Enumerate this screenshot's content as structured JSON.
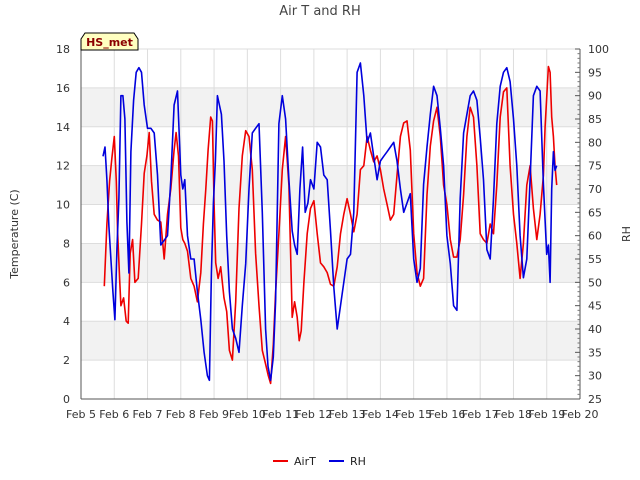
{
  "chart_data": {
    "type": "line",
    "title": "Air T and RH",
    "xlabel": "",
    "ylabel": "Temperature (C)",
    "y2label": "RH",
    "badge": "HS_met",
    "x_ticks": [
      "Feb 5",
      "Feb 6",
      "Feb 7",
      "Feb 8",
      "Feb 9",
      "Feb 10",
      "Feb 11",
      "Feb 12",
      "Feb 13",
      "Feb 14",
      "Feb 15",
      "Feb 16",
      "Feb 17",
      "Feb 18",
      "Feb 19",
      "Feb 20"
    ],
    "xlim": [
      5,
      20
    ],
    "ylim": [
      0,
      18
    ],
    "y_ticks": [
      0,
      2,
      4,
      6,
      8,
      10,
      12,
      14,
      16,
      18
    ],
    "y2lim": [
      25,
      100
    ],
    "y2_ticks": [
      25,
      30,
      35,
      40,
      45,
      50,
      55,
      60,
      65,
      70,
      75,
      80,
      85,
      90,
      95,
      100
    ],
    "legend": [
      "AirT",
      "RH"
    ],
    "colors": {
      "AirT": "#ee0000",
      "RH": "#0000dd",
      "band": "#f2f2f2",
      "grid": "#dddddd",
      "badge_bg": "#ffffc0"
    },
    "series": [
      {
        "name": "AirT",
        "axis": "left",
        "x": [
          5.7,
          5.78,
          5.86,
          5.93,
          6.0,
          6.06,
          6.1,
          6.16,
          6.2,
          6.28,
          6.36,
          6.42,
          6.48,
          6.55,
          6.62,
          6.72,
          6.82,
          6.9,
          6.98,
          7.05,
          7.12,
          7.2,
          7.3,
          7.4,
          7.5,
          7.6,
          7.7,
          7.8,
          7.86,
          7.93,
          8.0,
          8.06,
          8.12,
          8.2,
          8.3,
          8.4,
          8.5,
          8.6,
          8.68,
          8.75,
          8.82,
          8.9,
          8.95,
          9.0,
          9.05,
          9.12,
          9.2,
          9.3,
          9.38,
          9.46,
          9.55,
          9.65,
          9.75,
          9.85,
          9.95,
          10.05,
          10.15,
          10.25,
          10.35,
          10.45,
          10.55,
          10.63,
          10.7,
          10.78,
          10.85,
          10.95,
          11.05,
          11.15,
          11.25,
          11.35,
          11.42,
          11.5,
          11.56,
          11.62,
          11.7,
          11.8,
          11.9,
          12.0,
          12.1,
          12.2,
          12.3,
          12.4,
          12.5,
          12.6,
          12.7,
          12.8,
          12.9,
          13.0,
          13.1,
          13.2,
          13.3,
          13.4,
          13.5,
          13.6,
          13.7,
          13.8,
          13.9,
          14.0,
          14.1,
          14.2,
          14.3,
          14.4,
          14.5,
          14.6,
          14.7,
          14.8,
          14.9,
          15.0,
          15.1,
          15.2,
          15.3,
          15.4,
          15.5,
          15.6,
          15.7,
          15.8,
          15.9,
          16.0,
          16.1,
          16.2,
          16.3,
          16.4,
          16.5,
          16.6,
          16.7,
          16.8,
          16.9,
          17.0,
          17.1,
          17.2,
          17.3,
          17.4,
          17.5,
          17.6,
          17.7,
          17.8,
          17.9,
          18.0,
          18.1,
          18.2,
          18.3,
          18.4,
          18.5,
          18.6,
          18.7,
          18.8,
          18.9,
          18.95,
          19.0,
          19.05,
          19.1,
          19.15,
          19.2,
          19.25,
          19.3
        ],
        "y": [
          5.8,
          9.0,
          11.2,
          12.4,
          13.5,
          11.2,
          8.6,
          6.2,
          4.8,
          5.2,
          4.0,
          3.9,
          7.5,
          8.2,
          6.0,
          6.2,
          9.0,
          11.6,
          12.5,
          13.7,
          11.2,
          9.5,
          9.2,
          9.1,
          7.2,
          9.5,
          10.8,
          12.8,
          13.7,
          12.5,
          8.8,
          8.2,
          8.0,
          7.6,
          6.2,
          5.8,
          5.0,
          6.5,
          9.0,
          10.8,
          12.8,
          14.5,
          14.3,
          10.0,
          7.0,
          6.2,
          6.8,
          5.2,
          4.5,
          2.5,
          2.0,
          5.0,
          9.8,
          12.5,
          13.8,
          13.5,
          11.8,
          7.5,
          4.8,
          2.5,
          1.8,
          1.2,
          0.8,
          2.8,
          5.5,
          8.5,
          11.8,
          13.5,
          11.0,
          4.2,
          5.0,
          4.2,
          3.0,
          3.5,
          6.0,
          8.5,
          9.8,
          10.2,
          8.5,
          7.0,
          6.8,
          6.5,
          5.9,
          5.8,
          6.8,
          8.5,
          9.5,
          10.3,
          9.5,
          8.6,
          9.5,
          11.8,
          12.0,
          13.5,
          12.8,
          12.2,
          12.5,
          11.8,
          10.8,
          10.0,
          9.2,
          9.5,
          11.5,
          13.5,
          14.2,
          14.3,
          12.8,
          8.5,
          6.5,
          5.8,
          6.2,
          10.5,
          13.0,
          14.3,
          15.0,
          13.5,
          11.0,
          10.0,
          8.2,
          7.3,
          7.3,
          8.2,
          10.5,
          13.5,
          15.0,
          14.5,
          12.0,
          8.5,
          8.2,
          8.0,
          9.0,
          8.5,
          11.0,
          14.5,
          15.8,
          16.0,
          12.0,
          9.5,
          8.0,
          6.2,
          8.0,
          11.0,
          12.0,
          9.8,
          8.2,
          9.5,
          11.5,
          14.0,
          15.5,
          17.1,
          16.8,
          14.5,
          13.5,
          12.0,
          11.0
        ]
      },
      {
        "name": "RH",
        "axis": "right",
        "x": [
          5.66,
          5.72,
          5.78,
          5.84,
          5.9,
          5.96,
          6.02,
          6.08,
          6.14,
          6.2,
          6.26,
          6.32,
          6.38,
          6.44,
          6.5,
          6.58,
          6.66,
          6.74,
          6.82,
          6.9,
          7.0,
          7.1,
          7.2,
          7.3,
          7.4,
          7.5,
          7.6,
          7.7,
          7.8,
          7.9,
          8.0,
          8.06,
          8.12,
          8.2,
          8.3,
          8.4,
          8.5,
          8.6,
          8.7,
          8.8,
          8.86,
          8.92,
          8.98,
          9.04,
          9.1,
          9.16,
          9.22,
          9.3,
          9.38,
          9.46,
          9.55,
          9.65,
          9.75,
          9.85,
          9.95,
          10.05,
          10.15,
          10.25,
          10.35,
          10.45,
          10.55,
          10.62,
          10.7,
          10.78,
          10.85,
          10.95,
          11.05,
          11.15,
          11.25,
          11.35,
          11.42,
          11.5,
          11.58,
          11.66,
          11.74,
          11.82,
          11.9,
          12.0,
          12.1,
          12.2,
          12.3,
          12.4,
          12.5,
          12.6,
          12.7,
          12.8,
          12.9,
          13.0,
          13.1,
          13.2,
          13.3,
          13.4,
          13.5,
          13.6,
          13.7,
          13.8,
          13.9,
          14.0,
          14.1,
          14.2,
          14.3,
          14.4,
          14.5,
          14.6,
          14.7,
          14.8,
          14.9,
          15.0,
          15.1,
          15.2,
          15.3,
          15.4,
          15.5,
          15.6,
          15.7,
          15.8,
          15.9,
          16.0,
          16.1,
          16.2,
          16.3,
          16.4,
          16.5,
          16.6,
          16.7,
          16.8,
          16.9,
          17.0,
          17.1,
          17.2,
          17.3,
          17.4,
          17.5,
          17.6,
          17.7,
          17.8,
          17.9,
          18.0,
          18.1,
          18.2,
          18.3,
          18.4,
          18.5,
          18.6,
          18.7,
          18.8,
          18.9,
          19.0,
          19.05,
          19.1,
          19.15,
          19.2,
          19.25,
          19.3
        ],
        "y": [
          77,
          79,
          72,
          62,
          55,
          48,
          42,
          57,
          68,
          90,
          90,
          85,
          63,
          52,
          78,
          89,
          95,
          96,
          95,
          88,
          83,
          83,
          82,
          73,
          58,
          59,
          60,
          72,
          88,
          91,
          73,
          70,
          72,
          60,
          55,
          55,
          48,
          42,
          35,
          30,
          29,
          52,
          67,
          76,
          90,
          88,
          86,
          76,
          60,
          48,
          40,
          38,
          35,
          45,
          54,
          70,
          82,
          83,
          84,
          65,
          40,
          32,
          29,
          34,
          46,
          84,
          90,
          85,
          72,
          61,
          58,
          56,
          70,
          79,
          65,
          67,
          72,
          70,
          80,
          79,
          73,
          72,
          61,
          49,
          40,
          45,
          50,
          55,
          56,
          65,
          95,
          97,
          90,
          80,
          82,
          77,
          72,
          76,
          77,
          78,
          79,
          80,
          76,
          70,
          65,
          67,
          69,
          55,
          50,
          53,
          71,
          79,
          86,
          92,
          90,
          83,
          75,
          60,
          54,
          45,
          44,
          68,
          82,
          86,
          90,
          91,
          89,
          81,
          72,
          57,
          55,
          68,
          84,
          92,
          95,
          96,
          93,
          85,
          75,
          60,
          51,
          55,
          72,
          90,
          92,
          91,
          71,
          56,
          58,
          50,
          70,
          78,
          74,
          75
        ]
      }
    ]
  }
}
